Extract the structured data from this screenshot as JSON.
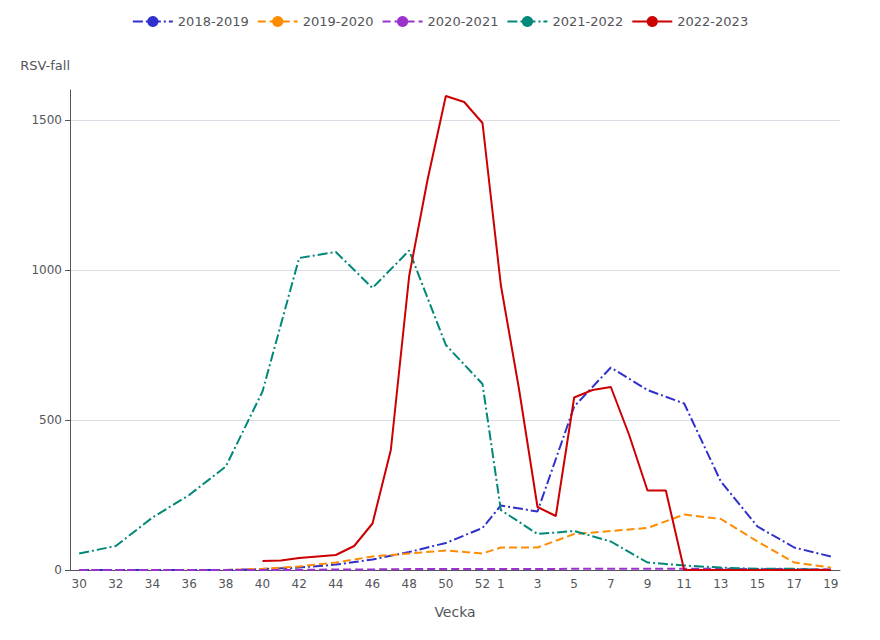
{
  "chart_data": {
    "type": "line",
    "xlabel": "Vecka",
    "ylabel": "RSV-fall",
    "categories": [
      "30",
      null,
      "32",
      null,
      "34",
      null,
      "36",
      null,
      "38",
      null,
      "40",
      null,
      "42",
      null,
      "44",
      null,
      "46",
      null,
      "48",
      null,
      "50",
      null,
      "52",
      "1",
      null,
      "3",
      null,
      "5",
      null,
      "7",
      null,
      "9",
      null,
      "11",
      null,
      "13",
      null,
      "15",
      null,
      "17",
      null,
      "19"
    ],
    "series": [
      {
        "name": "2018-2019",
        "color": "#3030cc",
        "line_style": "dashdot",
        "values": [
          0,
          null,
          0,
          null,
          0,
          null,
          0,
          null,
          0,
          null,
          3,
          null,
          8,
          null,
          18,
          null,
          35,
          null,
          60,
          null,
          90,
          null,
          140,
          215,
          null,
          195,
          null,
          545,
          null,
          675,
          null,
          600,
          null,
          555,
          null,
          295,
          null,
          145,
          null,
          75,
          null,
          45
        ]
      },
      {
        "name": "2019-2020",
        "color": "#ff8c00",
        "line_style": "dashed",
        "values": [
          0,
          null,
          0,
          null,
          0,
          null,
          0,
          null,
          0,
          null,
          4,
          null,
          12,
          null,
          25,
          null,
          45,
          null,
          55,
          null,
          65,
          null,
          55,
          75,
          null,
          75,
          null,
          120,
          null,
          130,
          null,
          140,
          null,
          185,
          null,
          170,
          null,
          95,
          null,
          25,
          null,
          8
        ]
      },
      {
        "name": "2020-2021",
        "color": "#9933cc",
        "line_style": "dashed",
        "values": [
          0,
          null,
          0,
          null,
          0,
          null,
          0,
          null,
          0,
          null,
          0,
          null,
          0,
          null,
          2,
          null,
          2,
          null,
          3,
          null,
          3,
          null,
          3,
          3,
          null,
          3,
          null,
          4,
          null,
          4,
          null,
          4,
          null,
          4,
          null,
          4,
          null,
          3,
          null,
          3,
          null,
          2
        ]
      },
      {
        "name": "2021-2022",
        "color": "#008878",
        "line_style": "dashdot",
        "values": [
          55,
          null,
          80,
          null,
          175,
          null,
          250,
          null,
          345,
          null,
          595,
          null,
          1040,
          null,
          1060,
          null,
          940,
          null,
          1065,
          null,
          750,
          null,
          620,
          200,
          null,
          120,
          null,
          130,
          null,
          95,
          null,
          25,
          null,
          15,
          null,
          8,
          null,
          4,
          null,
          4,
          null,
          0
        ]
      },
      {
        "name": "2022-2023",
        "color": "#cc0000",
        "line_style": "solid",
        "values": [
          null,
          null,
          null,
          null,
          null,
          null,
          null,
          null,
          null,
          null,
          30,
          32,
          40,
          45,
          50,
          80,
          155,
          400,
          980,
          1300,
          1580,
          1560,
          1490,
          950,
          600,
          210,
          180,
          575,
          600,
          610,
          450,
          265,
          265,
          0,
          null,
          0,
          null,
          0,
          null,
          0,
          null,
          0
        ]
      }
    ],
    "ylim": [
      0,
      1600
    ],
    "yticks": [
      0,
      500,
      1000,
      1500
    ],
    "grid": true,
    "legend": "top"
  }
}
